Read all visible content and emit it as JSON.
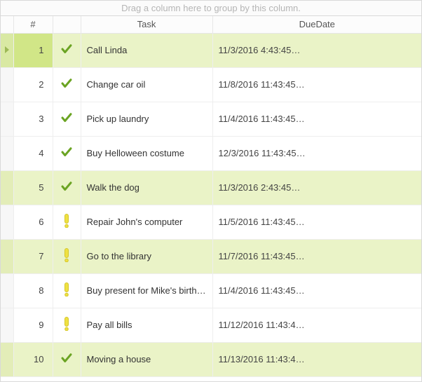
{
  "group_panel_text": "Drag a column here to group by this column.",
  "columns": {
    "indicator": "",
    "number": "#",
    "status": "",
    "task": "Task",
    "due": "DueDate"
  },
  "icon_colors": {
    "check": "#6ba423",
    "warn_fill": "#efe142",
    "warn_stroke": "#d4c52a",
    "row_indicator": "#9db956"
  },
  "highlight_bg": "#eaf3c7",
  "selected_num_bg": "#d1e687",
  "selected_row_index": 0,
  "rows": [
    {
      "n": "1",
      "status": "check",
      "task": "Call Linda",
      "due": "11/3/2016 4:43:45…",
      "highlight": true
    },
    {
      "n": "2",
      "status": "check",
      "task": "Change car oil",
      "due": "11/8/2016 11:43:45…",
      "highlight": false
    },
    {
      "n": "3",
      "status": "check",
      "task": "Pick up laundry",
      "due": "11/4/2016 11:43:45…",
      "highlight": false
    },
    {
      "n": "4",
      "status": "check",
      "task": "Buy Helloween costume",
      "due": "12/3/2016 11:43:45…",
      "highlight": false
    },
    {
      "n": "5",
      "status": "check",
      "task": "Walk the dog",
      "due": "11/3/2016 2:43:45…",
      "highlight": true
    },
    {
      "n": "6",
      "status": "warn",
      "task": "Repair John's computer",
      "due": "11/5/2016 11:43:45…",
      "highlight": false
    },
    {
      "n": "7",
      "status": "warn",
      "task": "Go to the library",
      "due": "11/7/2016 11:43:45…",
      "highlight": true
    },
    {
      "n": "8",
      "status": "warn",
      "task": "Buy present for Mike's birthday",
      "due": "11/4/2016 11:43:45…",
      "highlight": false
    },
    {
      "n": "9",
      "status": "warn",
      "task": "Pay all bills",
      "due": "11/12/2016 11:43:4…",
      "highlight": false
    },
    {
      "n": "10",
      "status": "check",
      "task": "Moving a house",
      "due": "11/13/2016 11:43:4…",
      "highlight": true
    }
  ]
}
